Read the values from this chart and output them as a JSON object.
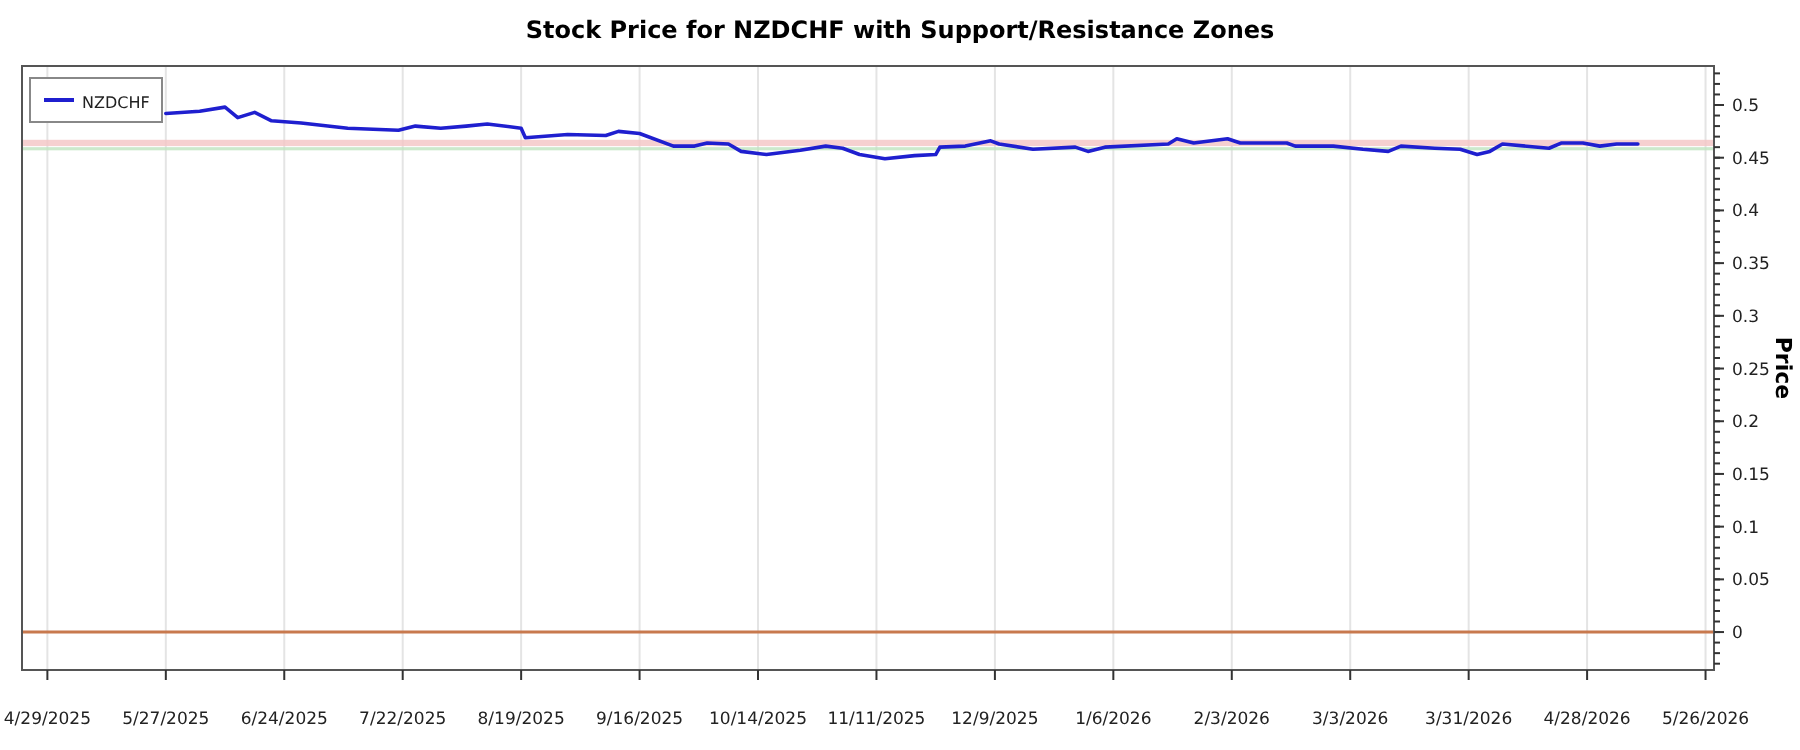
{
  "chart_data": {
    "type": "line",
    "title": "Stock Price for NZDCHF with Support/Resistance Zones",
    "ylabel": "Price",
    "xlim": [
      "2025-04-23",
      "2026-05-28"
    ],
    "xticks": [
      {
        "value": "2025-04-29",
        "label": "4/29/2025"
      },
      {
        "value": "2025-05-27",
        "label": "5/27/2025"
      },
      {
        "value": "2025-06-24",
        "label": "6/24/2025"
      },
      {
        "value": "2025-07-22",
        "label": "7/22/2025"
      },
      {
        "value": "2025-08-19",
        "label": "8/19/2025"
      },
      {
        "value": "2025-09-16",
        "label": "9/16/2025"
      },
      {
        "value": "2025-10-14",
        "label": "10/14/2025"
      },
      {
        "value": "2025-11-11",
        "label": "11/11/2025"
      },
      {
        "value": "2025-12-09",
        "label": "12/9/2025"
      },
      {
        "value": "2026-01-06",
        "label": "1/6/2026"
      },
      {
        "value": "2026-02-03",
        "label": "2/3/2026"
      },
      {
        "value": "2026-03-03",
        "label": "3/3/2026"
      },
      {
        "value": "2026-03-31",
        "label": "3/31/2026"
      },
      {
        "value": "2026-04-28",
        "label": "4/28/2026"
      },
      {
        "value": "2026-05-26",
        "label": "5/26/2026"
      }
    ],
    "ylim": [
      -0.036,
      0.537
    ],
    "yticks": [
      0,
      0.05,
      0.1,
      0.15,
      0.2,
      0.25,
      0.3,
      0.35,
      0.4,
      0.45,
      0.5
    ],
    "grid": "x",
    "legend": "top left",
    "line_style": "solid",
    "bands": [
      {
        "axis": "y",
        "from": 0.461,
        "to": 0.467,
        "color": "#f4c4c4"
      },
      {
        "axis": "y",
        "from": 0.457,
        "to": 0.46,
        "color": "#bfe3bf"
      }
    ],
    "ref_lines": [
      {
        "axis": "y",
        "value": 0,
        "color": "#c8794e"
      }
    ],
    "series": [
      {
        "name": "NZDCHF",
        "color": "#1f1fcf",
        "x": [
          "2025-05-27",
          "2025-06-04",
          "2025-06-10",
          "2025-06-13",
          "2025-06-17",
          "2025-06-21",
          "2025-06-28",
          "2025-07-09",
          "2025-07-21",
          "2025-07-25",
          "2025-07-31",
          "2025-08-06",
          "2025-08-11",
          "2025-08-19",
          "2025-08-20",
          "2025-08-30",
          "2025-09-08",
          "2025-09-11",
          "2025-09-16",
          "2025-09-24",
          "2025-09-29",
          "2025-10-02",
          "2025-10-07",
          "2025-10-10",
          "2025-10-16",
          "2025-10-24",
          "2025-10-30",
          "2025-11-03",
          "2025-11-07",
          "2025-11-13",
          "2025-11-20",
          "2025-11-25",
          "2025-11-26",
          "2025-12-02",
          "2025-12-08",
          "2025-12-10",
          "2025-12-18",
          "2025-12-28",
          "2025-12-31",
          "2026-01-04",
          "2026-01-19",
          "2026-01-21",
          "2026-01-25",
          "2026-02-02",
          "2026-02-05",
          "2026-02-16",
          "2026-02-18",
          "2026-02-27",
          "2026-03-06",
          "2026-03-12",
          "2026-03-15",
          "2026-03-23",
          "2026-03-29",
          "2026-04-02",
          "2026-04-05",
          "2026-04-08",
          "2026-04-19",
          "2026-04-22",
          "2026-04-27",
          "2026-05-01",
          "2026-05-05",
          "2026-05-10"
        ],
        "values": [
          0.492,
          0.494,
          0.498,
          0.488,
          0.493,
          0.485,
          0.483,
          0.478,
          0.476,
          0.48,
          0.478,
          0.48,
          0.482,
          0.478,
          0.469,
          0.472,
          0.471,
          0.475,
          0.473,
          0.461,
          0.461,
          0.464,
          0.463,
          0.456,
          0.453,
          0.457,
          0.461,
          0.459,
          0.453,
          0.449,
          0.452,
          0.453,
          0.46,
          0.461,
          0.466,
          0.463,
          0.458,
          0.46,
          0.456,
          0.46,
          0.463,
          0.468,
          0.464,
          0.468,
          0.464,
          0.464,
          0.461,
          0.461,
          0.458,
          0.456,
          0.461,
          0.459,
          0.458,
          0.453,
          0.456,
          0.463,
          0.459,
          0.464,
          0.464,
          0.461,
          0.463,
          0.463
        ]
      }
    ]
  }
}
